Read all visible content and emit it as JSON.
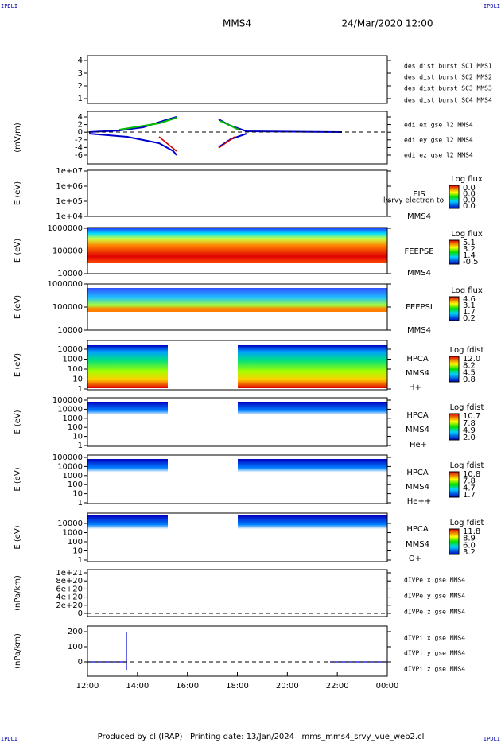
{
  "header": {
    "corners": [
      "IPDLI",
      "IPDLI",
      "IPDLI",
      "IPDLI"
    ],
    "title": "MMS4",
    "date": "24/Mar/2020 12:00"
  },
  "panels": [
    {
      "yticks": [
        4,
        3,
        2,
        1
      ],
      "legend": [
        {
          "text": "des dist burst SC1 MMS1",
          "color": "#0000cc"
        },
        {
          "text": "des dist burst SC2 MMS2",
          "color": "#cc00cc"
        },
        {
          "text": "des dist burst SC3 MMS3",
          "color": "#cc0000"
        },
        {
          "text": "des dist burst SC4 MMS4",
          "color": "#00bb00"
        }
      ]
    },
    {
      "ylabel": "(mV/m)",
      "yticks": [
        4,
        2,
        0,
        -2,
        -4,
        -6
      ],
      "legend": [
        {
          "text": "edi ex gse l2 MMS4",
          "color": "#cc0000"
        },
        {
          "text": "edi ey gse l2 MMS4",
          "color": "#00bb00"
        },
        {
          "text": "edi ez gse l2 MMS4",
          "color": "#0000cc"
        }
      ]
    },
    {
      "ylabel": "E (eV)",
      "yticks": [
        "1e+07",
        "1e+06",
        "1e+05",
        "1e+04"
      ],
      "labels": [
        "EIS",
        "MMS4",
        "l/srvy electron to"
      ],
      "colorbar": {
        "title": "Log flux",
        "ticks": [
          "0.0",
          "0.0",
          "0.0",
          "0.0"
        ]
      }
    },
    {
      "ylabel": "E (eV)",
      "yticks": [
        1000000,
        100000,
        10000
      ],
      "labels": [
        "FEEPSE",
        "MMS4"
      ],
      "colorbar": {
        "title": "Log flux",
        "ticks": [
          "5.1",
          "3.2",
          "1.4",
          "-0.5"
        ]
      }
    },
    {
      "ylabel": "E (eV)",
      "yticks": [
        1000000,
        100000,
        10000
      ],
      "labels": [
        "FEEPSI",
        "MMS4"
      ],
      "colorbar": {
        "title": "Log flux",
        "ticks": [
          "4.6",
          "3.1",
          "1.7",
          "0.2"
        ]
      }
    },
    {
      "ylabel": "E (eV)",
      "yticks": [
        10000,
        1000,
        100,
        10,
        1
      ],
      "labels": [
        "HPCA",
        "MMS4",
        "H+"
      ],
      "colorbar": {
        "title": "Log fdist",
        "ticks": [
          "12.0",
          "8.2",
          "4.5",
          "0.8"
        ]
      }
    },
    {
      "ylabel": "E (eV)",
      "yticks": [
        100000,
        10000,
        1000,
        100,
        10,
        1
      ],
      "labels": [
        "HPCA",
        "MMS4",
        "He+"
      ],
      "colorbar": {
        "title": "Log fdist",
        "ticks": [
          "10.7",
          "7.8",
          "4.9",
          "2.0"
        ]
      }
    },
    {
      "ylabel": "E (eV)",
      "yticks": [
        100000,
        10000,
        1000,
        100,
        10,
        1
      ],
      "labels": [
        "HPCA",
        "MMS4",
        "He++"
      ],
      "colorbar": {
        "title": "Log fdist",
        "ticks": [
          "10.8",
          "7.8",
          "4.7",
          "1.7"
        ]
      }
    },
    {
      "ylabel": "E (eV)",
      "yticks": [
        10000,
        1000,
        100,
        10,
        1
      ],
      "labels": [
        "HPCA",
        "MMS4",
        "O+"
      ],
      "colorbar": {
        "title": "Log fdist",
        "ticks": [
          "11.8",
          "8.9",
          "6.0",
          "3.2"
        ]
      }
    },
    {
      "ylabel": "(nPa/km)",
      "yticks": [
        "1e+21",
        "8e+20",
        "6e+20",
        "4e+20",
        "2e+20",
        0
      ],
      "legend": [
        {
          "text": "dIVPe x gse MMS4",
          "color": "#cc0000"
        },
        {
          "text": "dIVPe y gse MMS4",
          "color": "#00bb00"
        },
        {
          "text": "dIVPe z gse MMS4",
          "color": "#0000cc"
        }
      ]
    },
    {
      "ylabel": "(nPa/km)",
      "yticks": [
        200,
        100,
        0
      ],
      "legend": [
        {
          "text": "dIVPi x gse MMS4",
          "color": "#cc0000"
        },
        {
          "text": "dIVPi y gse MMS4",
          "color": "#00bb00"
        },
        {
          "text": "dIVPi z gse MMS4",
          "color": "#0000cc"
        }
      ]
    }
  ],
  "xticks": [
    "12:00",
    "14:00",
    "16:00",
    "18:00",
    "20:00",
    "22:00",
    "00:00"
  ],
  "footer": "Produced by cl (IRAP)   Printing date: 13/Jan/2024   mms_mms4_srvy_vue_web2.cl"
}
